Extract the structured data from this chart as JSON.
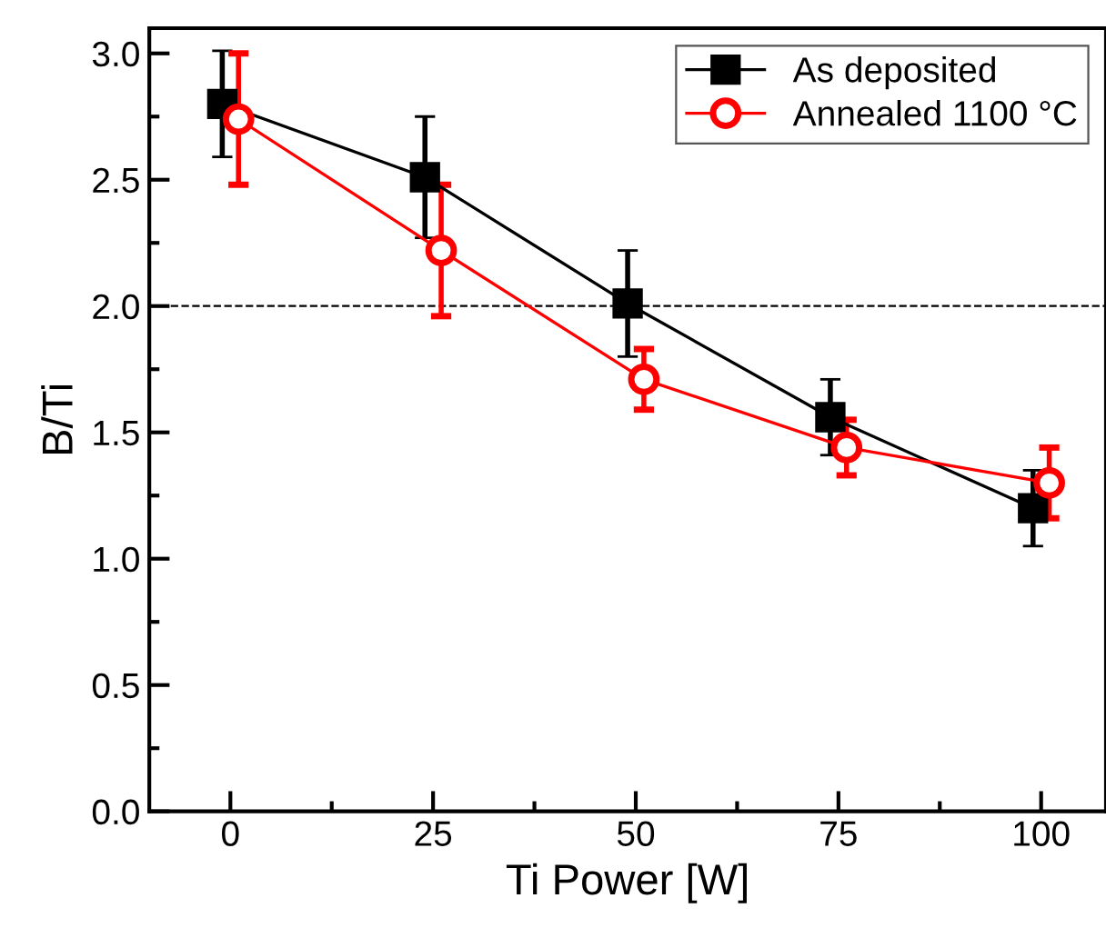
{
  "chart_data": {
    "type": "line",
    "xlabel": "Ti Power [W]",
    "ylabel": "B/Ti",
    "xlim": [
      -10,
      108
    ],
    "ylim": [
      0,
      3.1
    ],
    "xticks": [
      0,
      25,
      50,
      75,
      100
    ],
    "yticks": [
      {
        "value": 0,
        "label": "0.0"
      },
      {
        "value": 0.5,
        "label": "0.5"
      },
      {
        "value": 1,
        "label": "1.0"
      },
      {
        "value": 1.5,
        "label": "1.5"
      },
      {
        "value": 2,
        "label": "2.0"
      },
      {
        "value": 2.5,
        "label": "2.5"
      },
      {
        "value": 3,
        "label": "3.0"
      }
    ],
    "grid": false,
    "legend": "top right",
    "line_style": "solid",
    "series": [
      {
        "name": "As deposited",
        "color": "#000000",
        "marker": "square",
        "x": [
          -1,
          24,
          49,
          74,
          99
        ],
        "values": [
          2.8,
          2.51,
          2.01,
          1.56,
          1.2
        ],
        "errors": [
          0.21,
          0.24,
          0.21,
          0.15,
          0.15
        ]
      },
      {
        "name": "Annealed 1100 °C",
        "color": "#ff0000",
        "marker": "circle",
        "x": [
          1,
          26,
          51,
          76,
          101
        ],
        "values": [
          2.74,
          2.22,
          1.71,
          1.44,
          1.3
        ],
        "errors": [
          0.26,
          0.26,
          0.12,
          0.11,
          0.14
        ]
      }
    ],
    "ref_lines": [
      {
        "axis": "y",
        "value": 2.0,
        "label": null,
        "line_style": "dashed",
        "color": "#000000"
      }
    ]
  }
}
